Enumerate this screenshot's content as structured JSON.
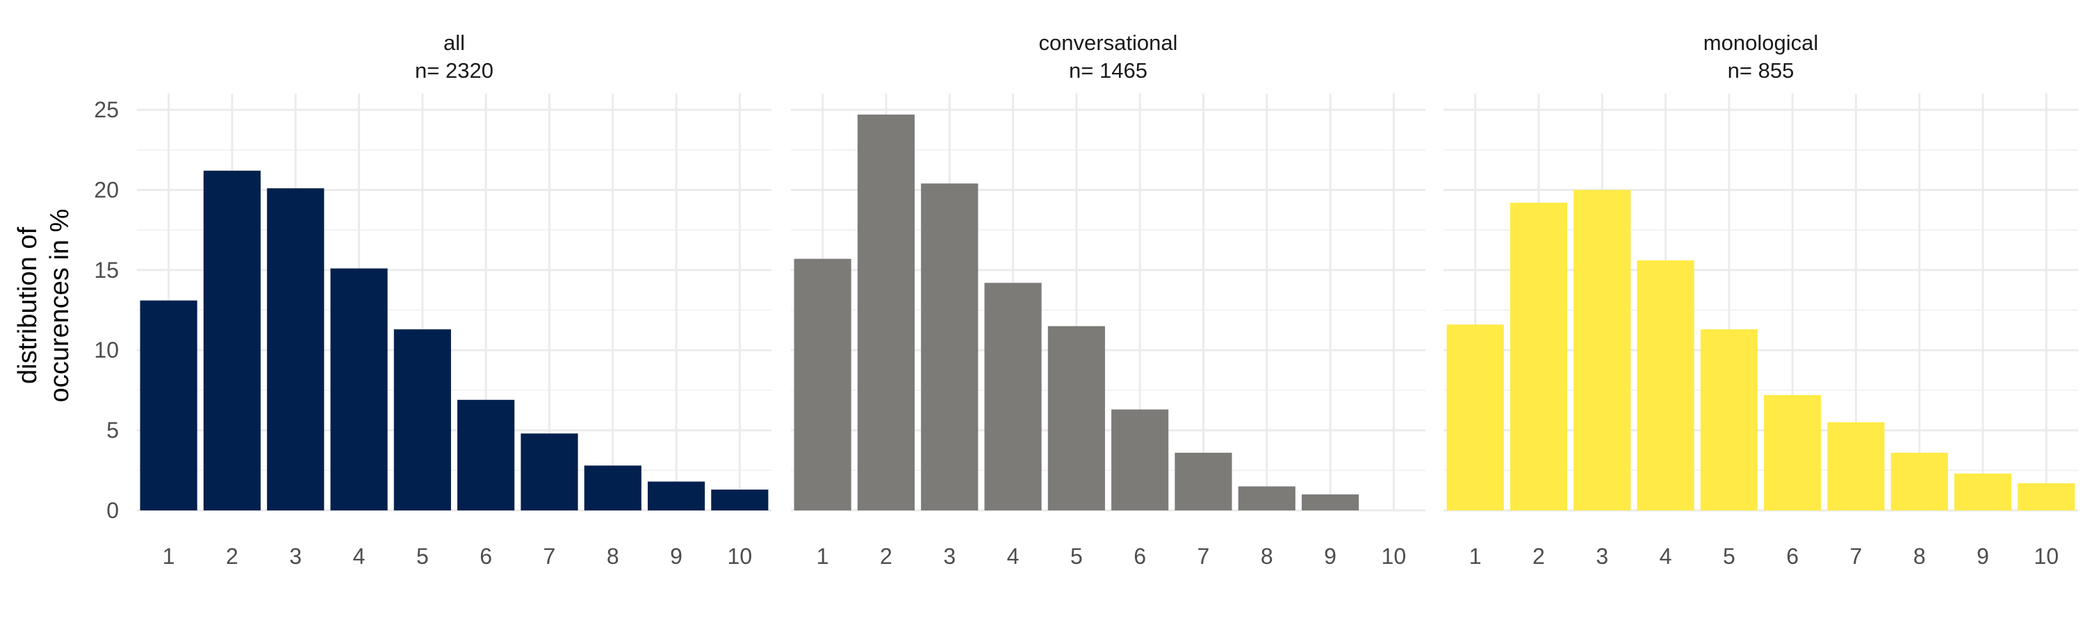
{
  "chart_data": {
    "type": "bar",
    "ylabel_lines": [
      "distribution of",
      "occurences in %"
    ],
    "ylim": [
      0,
      26
    ],
    "y_ticks": [
      0,
      5,
      10,
      15,
      20,
      25
    ],
    "categories": [
      "1",
      "2",
      "3",
      "4",
      "5",
      "6",
      "7",
      "8",
      "9",
      "10"
    ],
    "grid": true,
    "panels": [
      {
        "title_lines": [
          "all",
          "n=  2320"
        ],
        "color": "#02204D",
        "values": [
          13.1,
          21.2,
          20.1,
          15.1,
          11.3,
          6.9,
          4.8,
          2.8,
          1.8,
          1.3
        ]
      },
      {
        "title_lines": [
          "conversational",
          "n=  1465"
        ],
        "color": "#7C7B78",
        "values": [
          15.7,
          24.7,
          20.4,
          14.2,
          11.5,
          6.3,
          3.6,
          1.5,
          1.0,
          0.0
        ]
      },
      {
        "title_lines": [
          "monological",
          "n=  855"
        ],
        "color": "#FFEA46",
        "values": [
          11.6,
          19.2,
          20.0,
          15.6,
          11.3,
          7.2,
          5.5,
          3.6,
          2.3,
          1.7
        ]
      }
    ]
  }
}
